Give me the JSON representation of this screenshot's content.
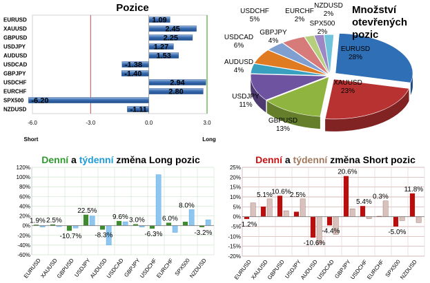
{
  "chart_data": [
    {
      "type": "bar",
      "orientation": "horizontal",
      "title": "Pozice",
      "categories": [
        "EURUSD",
        "XAUUSD",
        "GBPUSD",
        "USDJPY",
        "AUDUSD",
        "USDCAD",
        "GBPJPY",
        "USDCHF",
        "EURCHF",
        "SPX500",
        "NZDUSD"
      ],
      "values": [
        1.09,
        2.45,
        2.25,
        1.27,
        1.53,
        -1.38,
        -1.4,
        2.94,
        2.8,
        -6.2,
        -1.11
      ],
      "value_labels": [
        "1.09",
        "2.45",
        "2.25",
        "1.27",
        "1.53",
        "-1.38",
        "-1.40",
        "2.94",
        "2.80",
        "-6.20",
        "-1.11"
      ],
      "xlim": [
        -6.0,
        3.0
      ],
      "x_ticks": [
        "-6.0",
        "-3.0",
        "0.0",
        "3.0"
      ],
      "short_label": "Short",
      "long_label": "Long",
      "colors": {
        "bar": "#3a6db0",
        "short_line": "#c0504d",
        "long_line": "#4ea72e"
      }
    },
    {
      "type": "pie",
      "title_lines": [
        "Množství",
        "otevřených",
        "pozic"
      ],
      "slices": [
        {
          "name": "EURUSD",
          "value": 28,
          "label": "28%",
          "color": "#2f6fb5"
        },
        {
          "name": "XAUUSD",
          "value": 23,
          "label": "23%",
          "color": "#b83232"
        },
        {
          "name": "GBPUSD",
          "value": 13,
          "label": "13%",
          "color": "#8fb43f"
        },
        {
          "name": "USDJPY",
          "value": 11,
          "label": "11%",
          "color": "#6e53a0"
        },
        {
          "name": "AUDUSD",
          "value": 4,
          "label": "4%",
          "color": "#3aa0bf"
        },
        {
          "name": "USDCAD",
          "value": 6,
          "label": "6%",
          "color": "#e07b22"
        },
        {
          "name": "GBPJPY",
          "value": 4,
          "label": "4%",
          "color": "#7f9fd1"
        },
        {
          "name": "USDCHF",
          "value": 5,
          "label": "5%",
          "color": "#d67a7a"
        },
        {
          "name": "EURCHF",
          "value": 2,
          "label": "2%",
          "color": "#b5cf7e"
        },
        {
          "name": "SPX500",
          "value": 2,
          "label": "2%",
          "color": "#9c88c4"
        },
        {
          "name": "NZDUSD",
          "value": 2,
          "label": "2%",
          "color": "#6fc3db"
        }
      ]
    },
    {
      "type": "bar",
      "title_parts": [
        "Denní",
        " a ",
        "týdenní",
        " změna Long pozic"
      ],
      "title_colors": [
        "#2e9a2e",
        "#000000",
        "#1f9bd7",
        "#000000"
      ],
      "categories": [
        "EURUSD",
        "XAUUSD",
        "GBPUSD",
        "USDJPY",
        "AUDUSD",
        "USDCAD",
        "GBPJPY",
        "USDCHF",
        "EURCHF",
        "SPX500",
        "NZDUSD"
      ],
      "series": [
        {
          "name": "Denní",
          "values": [
            1.9,
            2.5,
            -10.7,
            22.5,
            -8.3,
            9.6,
            3.0,
            -6.3,
            6.0,
            8.0,
            -3.2
          ],
          "labels": [
            "1.9%",
            "2.5%",
            "-10.7%",
            "22.5%",
            "-8.3%",
            "9.6%",
            "3.0%",
            "-6.3%",
            "6.0%",
            "8.0%",
            "-3.2%"
          ]
        },
        {
          "name": "týdenní",
          "values": [
            -3,
            -2,
            -5,
            20,
            -40,
            8,
            -3,
            105,
            -14,
            33,
            12
          ]
        }
      ],
      "ylim": [
        -60,
        120
      ],
      "y_ticks": [
        "120%",
        "100%",
        "80%",
        "60%",
        "40%",
        "20%",
        "0%",
        "-20%",
        "-40%",
        "-60%"
      ]
    },
    {
      "type": "bar",
      "title_parts": [
        "Denní",
        " a ",
        "týdenní",
        " změna Short pozic"
      ],
      "title_colors": [
        "#cc1010",
        "#000000",
        "#a0785a",
        "#000000"
      ],
      "categories": [
        "EURUSD",
        "XAUUSD",
        "GBPUSD",
        "USDJPY",
        "AUDUSD",
        "USDCAD",
        "GBPJPY",
        "USDCHF",
        "EURCHF",
        "SPX500",
        "NZDUSD"
      ],
      "series": [
        {
          "name": "Denní",
          "values": [
            -1.2,
            5.1,
            10.6,
            2.5,
            -10.6,
            -4.4,
            20.6,
            5.4,
            0.3,
            -5.0,
            11.8
          ],
          "labels": [
            "-1.2%",
            "5.1%",
            "10.6%",
            "2.5%",
            "-10.6%",
            "-4.4%",
            "20.6%",
            "5.4%",
            "0.3%",
            "-5.0%",
            "11.8%"
          ]
        },
        {
          "name": "týdenní",
          "values": [
            7,
            9,
            3,
            9,
            -14,
            -9,
            4,
            -1,
            8,
            -2,
            -3
          ]
        }
      ],
      "ylim": [
        -20,
        25
      ],
      "y_ticks": [
        "25%",
        "20%",
        "15%",
        "10%",
        "5%",
        "0%",
        "-5%",
        "-10%",
        "-15%",
        "-20%"
      ]
    }
  ]
}
